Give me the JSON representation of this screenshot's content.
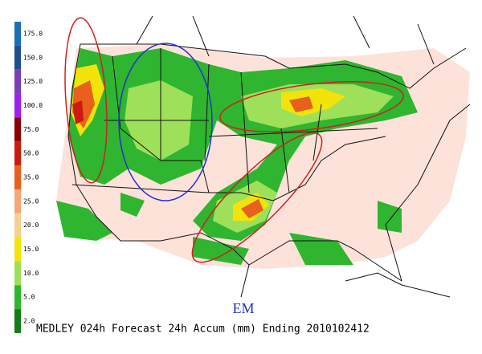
{
  "legend": {
    "items": [
      {
        "label": "175.0",
        "color": "#1a6fb8"
      },
      {
        "label": "150.0",
        "color": "#1f4f8f"
      },
      {
        "label": "125.0",
        "color": "#7a3fb5"
      },
      {
        "label": "100.0",
        "color": "#a020f0"
      },
      {
        "label": "75.0",
        "color": "#8b0000"
      },
      {
        "label": "50.0",
        "color": "#cc1a10"
      },
      {
        "label": "35.0",
        "color": "#e8601c"
      },
      {
        "label": "25.0",
        "color": "#f4a77a"
      },
      {
        "label": "20.0",
        "color": "#f7cf8e"
      },
      {
        "label": "15.0",
        "color": "#f2e40a"
      },
      {
        "label": "10.0",
        "color": "#9ee05a"
      },
      {
        "label": "5.0",
        "color": "#2fb52f"
      },
      {
        "label": "2.0",
        "color": "#167a16"
      }
    ]
  },
  "map": {
    "mark": "EM"
  },
  "footer": {
    "caption": "MEDLEY 024h Forecast 24h Accum (mm) Ending 2010102412"
  }
}
